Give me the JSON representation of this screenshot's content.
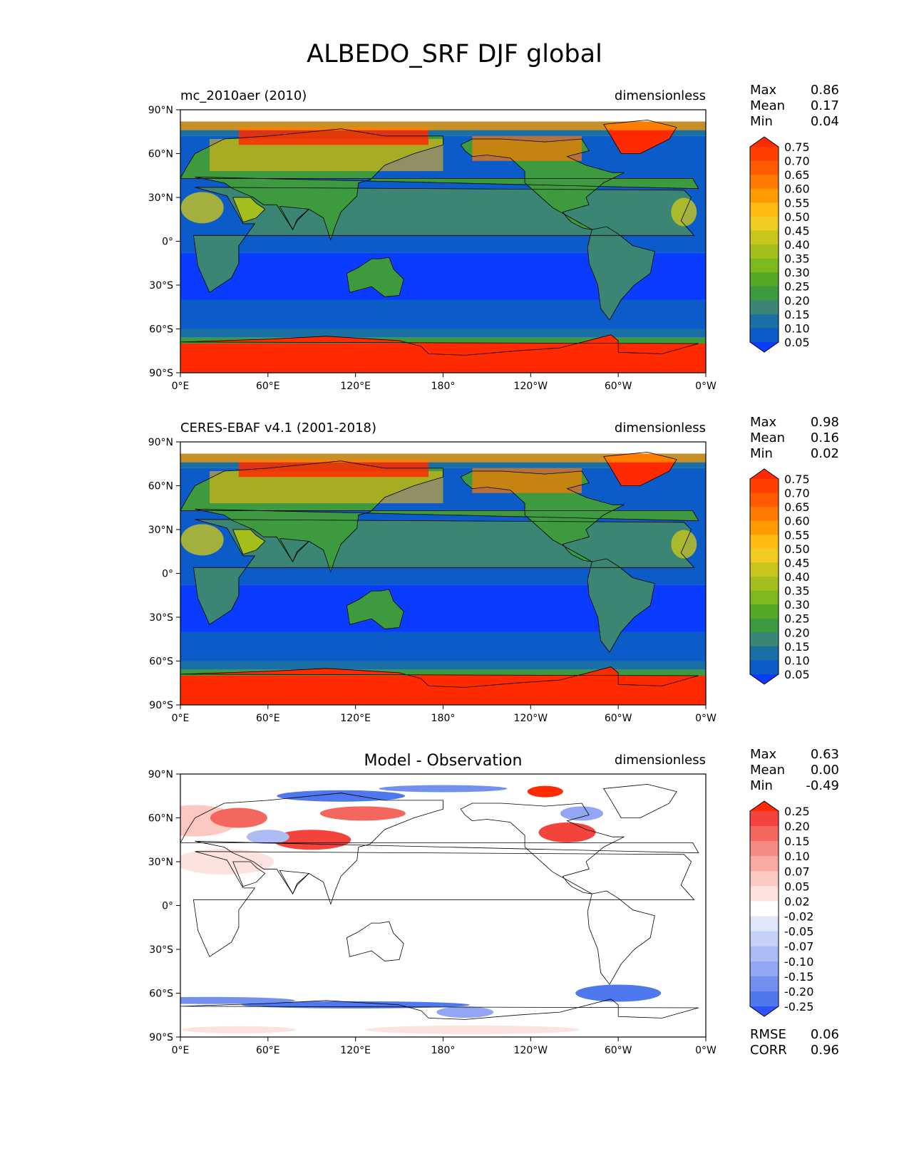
{
  "title": "ALBEDO_SRF DJF global",
  "axes": {
    "lat_ticks": [
      "90°N",
      "60°N",
      "30°N",
      "0°",
      "30°S",
      "60°S",
      "90°S"
    ],
    "lon_ticks": [
      "0°E",
      "60°E",
      "120°E",
      "180°",
      "120°W",
      "60°W",
      "0°W"
    ]
  },
  "panels": [
    {
      "id": "model",
      "left_title": "mc_2010aer (2010)",
      "center_title": "",
      "units": "dimensionless",
      "stats": [
        {
          "label": "Max",
          "value": "0.86"
        },
        {
          "label": "Mean",
          "value": "0.17"
        },
        {
          "label": "Min",
          "value": "0.04"
        }
      ],
      "colorbar": {
        "levels": [
          "0.75",
          "0.70",
          "0.65",
          "0.60",
          "0.55",
          "0.50",
          "0.45",
          "0.40",
          "0.35",
          "0.30",
          "0.25",
          "0.20",
          "0.15",
          "0.10",
          "0.05"
        ],
        "colors": [
          "#ff2a00",
          "#ff3f00",
          "#ff5a00",
          "#ff7a00",
          "#ff9b00",
          "#ffbb11",
          "#f0cc22",
          "#c9c51c",
          "#a4be1c",
          "#7db81e",
          "#55a825",
          "#3d9a3f",
          "#3a8573",
          "#1a6fa5",
          "#0b5bc9",
          "#0a3cff"
        ]
      },
      "footer_stats": []
    },
    {
      "id": "observation",
      "left_title": "CERES-EBAF v4.1 (2001-2018)",
      "center_title": "",
      "units": "dimensionless",
      "stats": [
        {
          "label": "Max",
          "value": "0.98"
        },
        {
          "label": "Mean",
          "value": "0.16"
        },
        {
          "label": "Min",
          "value": "0.02"
        }
      ],
      "colorbar": {
        "levels": [
          "0.75",
          "0.70",
          "0.65",
          "0.60",
          "0.55",
          "0.50",
          "0.45",
          "0.40",
          "0.35",
          "0.30",
          "0.25",
          "0.20",
          "0.15",
          "0.10",
          "0.05"
        ],
        "colors": [
          "#ff2a00",
          "#ff3f00",
          "#ff5a00",
          "#ff7a00",
          "#ff9b00",
          "#ffbb11",
          "#f0cc22",
          "#c9c51c",
          "#a4be1c",
          "#7db81e",
          "#55a825",
          "#3d9a3f",
          "#3a8573",
          "#1a6fa5",
          "#0b5bc9",
          "#0a3cff"
        ]
      },
      "footer_stats": []
    },
    {
      "id": "difference",
      "left_title": "",
      "center_title": "Model - Observation",
      "units": "dimensionless",
      "stats": [
        {
          "label": "Max",
          "value": "0.63"
        },
        {
          "label": "Mean",
          "value": "0.00"
        },
        {
          "label": "Min",
          "value": "-0.49"
        }
      ],
      "colorbar": {
        "levels": [
          "0.25",
          "0.20",
          "0.15",
          "0.10",
          "0.07",
          "0.05",
          "0.02",
          "-0.02",
          "-0.05",
          "-0.07",
          "-0.10",
          "-0.15",
          "-0.20",
          "-0.25"
        ],
        "colors": [
          "#ff2a00",
          "#f4433b",
          "#f3675f",
          "#f58a82",
          "#f8aaa3",
          "#fbc8c2",
          "#fde3df",
          "#ffffff",
          "#e1e6fb",
          "#c7d1f8",
          "#aebcf6",
          "#93a6f3",
          "#7190f0",
          "#4f77ee",
          "#2a55ff"
        ]
      },
      "footer_stats": [
        {
          "label": "RMSE",
          "value": "0.06"
        },
        {
          "label": "CORR",
          "value": "0.96"
        }
      ]
    }
  ]
}
